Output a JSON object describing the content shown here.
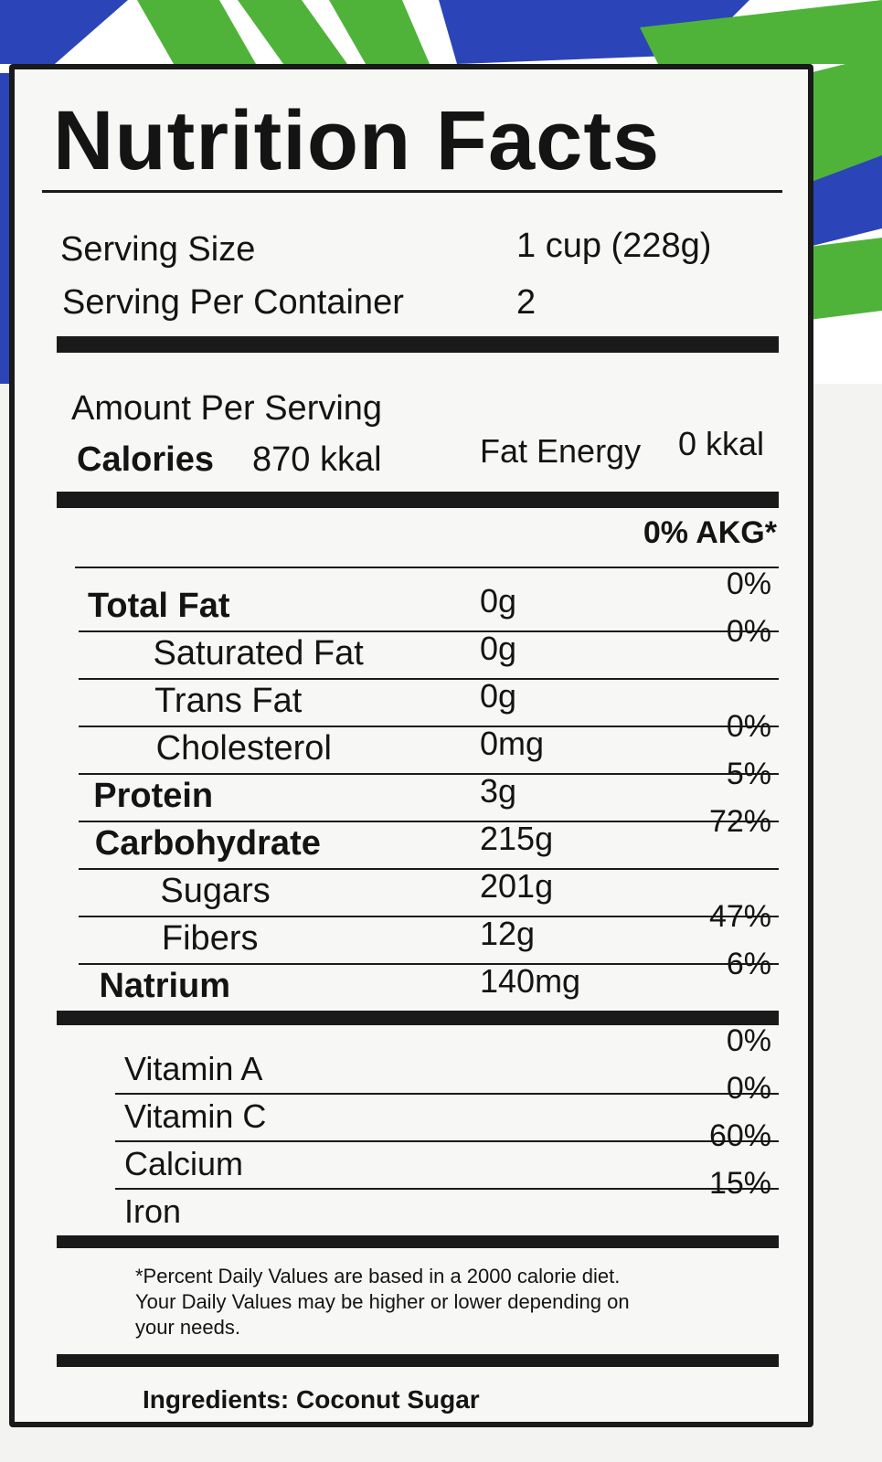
{
  "header": {
    "title": "Nutrition Facts"
  },
  "serving": {
    "size_label": "Serving Size",
    "size": "1 cup (228g)",
    "per_container_label": "Serving Per Container",
    "per_container": "2"
  },
  "amount": {
    "label": "Amount Per Serving",
    "calories_label": "Calories",
    "calories": "870 kkal",
    "fat_energy_label": "Fat Energy",
    "fat_energy": "0 kkal"
  },
  "dv_header": "0% AKG*",
  "nutrients": [
    {
      "name": "Total Fat",
      "amount": "0g",
      "dv": "0%",
      "sub": [
        {
          "name": "Saturated Fat",
          "amount": "0g",
          "dv": "0%"
        },
        {
          "name": "Trans Fat",
          "amount": "0g"
        },
        {
          "name": "Cholesterol",
          "amount": "0mg",
          "dv": "0%"
        }
      ]
    },
    {
      "name": "Protein",
      "amount": "3g",
      "dv": "5%"
    },
    {
      "name": "Carbohydrate",
      "amount": "215g",
      "dv": "72%",
      "sub": [
        {
          "name": "Sugars",
          "amount": "201g"
        },
        {
          "name": "Fibers",
          "amount": "12g",
          "dv": "47%"
        }
      ]
    },
    {
      "name": "Natrium",
      "amount": "140mg",
      "dv": "6%"
    }
  ],
  "vitamins": [
    {
      "name": "Vitamin A",
      "dv": "0%"
    },
    {
      "name": "Vitamin C",
      "dv": "0%"
    },
    {
      "name": "Calcium",
      "dv": "60%"
    },
    {
      "name": "Iron",
      "dv": "15%"
    }
  ],
  "footnote": [
    "*Percent Daily Values are based in a 2000 calorie diet.",
    "Your Daily Values may be higher or lower depending on",
    "your needs."
  ],
  "ingredients": "Ingredients: Coconut Sugar"
}
